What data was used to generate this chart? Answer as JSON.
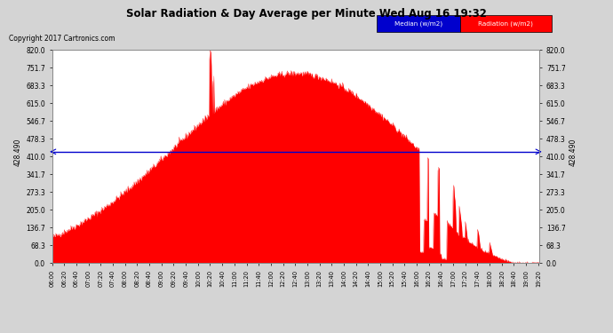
{
  "title": "Solar Radiation & Day Average per Minute Wed Aug 16 19:32",
  "copyright": "Copyright 2017 Cartronics.com",
  "median_value": 428.49,
  "median_label": "428.490",
  "y_ticks": [
    0.0,
    68.3,
    136.7,
    205.0,
    273.3,
    341.7,
    410.0,
    478.3,
    546.7,
    615.0,
    683.3,
    751.7,
    820.0
  ],
  "y_max": 820.0,
  "y_min": 0.0,
  "background_color": "#d4d4d4",
  "plot_bg_color": "#ffffff",
  "fill_color": "#ff0000",
  "median_color": "#0000cd",
  "grid_color": "#cccccc",
  "legend_median_bg": "#0000cd",
  "legend_radiation_bg": "#ff0000",
  "title_color": "#000000",
  "copyright_color": "#000000",
  "total_minutes": 803,
  "peak_minute": 400,
  "peak_value": 730,
  "spike_minute": 261,
  "spike_value": 820
}
